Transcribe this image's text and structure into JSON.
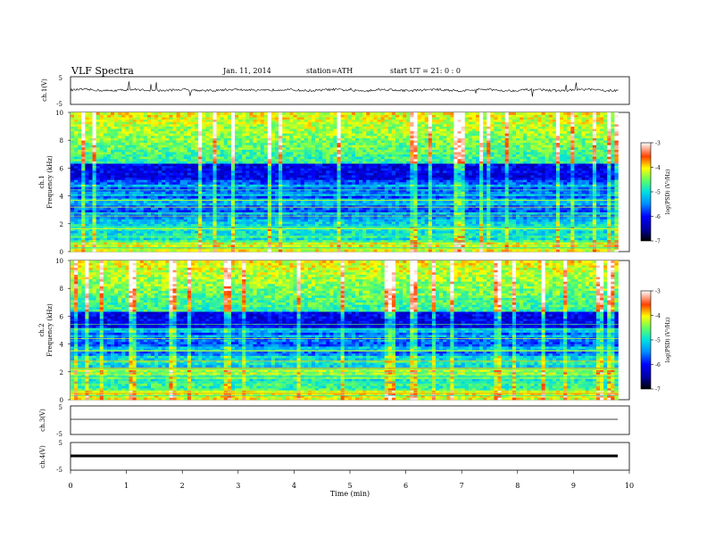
{
  "header": {
    "title": "VLF  Spectra",
    "date": "Jan. 11, 2014",
    "station": "station=ATH",
    "start": "start  UT =   21: 0  : 0"
  },
  "colorbar": {
    "label": "log(PSD) (V²/Hz)",
    "ticks": [
      "-3",
      "-4",
      "-5",
      "-6",
      "-7"
    ],
    "colors": [
      "#000080",
      "#0000ff",
      "#0080ff",
      "#00ffff",
      "#80ff80",
      "#ffff00",
      "#ff8000",
      "#ff0000",
      "#ffffff"
    ]
  },
  "chart_data": [
    {
      "type": "line",
      "panel": "ch1-waveform",
      "ylabel": "ch.1(V)",
      "ylim": [
        -5,
        5
      ],
      "yticks": [
        "5",
        "-5"
      ],
      "xlim": [
        0,
        10
      ],
      "trace": "noisy waveform near 0 V with spikes"
    },
    {
      "type": "heatmap",
      "panel": "ch1-spectrogram",
      "ylabel": "ch.1\nFrequency  (kHz)",
      "ylabel_lines": [
        "ch.1",
        "Frequency  (kHz)"
      ],
      "yticks": [
        "10",
        "8",
        "6",
        "4",
        "2",
        "0"
      ],
      "ylim": [
        0,
        10
      ],
      "xlim": [
        0,
        10
      ],
      "data_end_min": 9.8,
      "zlabel": "log(PSD) (V²/Hz)",
      "zlim": [
        -7,
        -3
      ]
    },
    {
      "type": "heatmap",
      "panel": "ch2-spectrogram",
      "ylabel_lines": [
        "ch.2",
        "Frequency  (kHz)"
      ],
      "yticks": [
        "10",
        "8",
        "6",
        "4",
        "2",
        "0"
      ],
      "ylim": [
        0,
        10
      ],
      "xlim": [
        0,
        10
      ],
      "data_end_min": 9.8,
      "zlabel": "log(PSD) (V²/Hz)",
      "zlim": [
        -7,
        -3
      ]
    },
    {
      "type": "line",
      "panel": "ch3-waveform",
      "ylabel": "ch.3(V)",
      "ylim": [
        -5,
        5
      ],
      "yticks": [
        "5",
        "-5"
      ],
      "xlim": [
        0,
        10
      ],
      "trace": "flat line near -1 V"
    },
    {
      "type": "line",
      "panel": "ch4-waveform",
      "ylabel": "ch.4(V)",
      "ylim": [
        -5,
        5
      ],
      "yticks": [
        "5",
        "-5"
      ],
      "xlim": [
        0,
        10
      ],
      "trace": "thick flat band near -1 V"
    }
  ],
  "xaxis": {
    "label": "Time  (min)",
    "ticks": [
      "0",
      "1",
      "2",
      "3",
      "4",
      "5",
      "6",
      "7",
      "8",
      "9",
      "10"
    ]
  }
}
